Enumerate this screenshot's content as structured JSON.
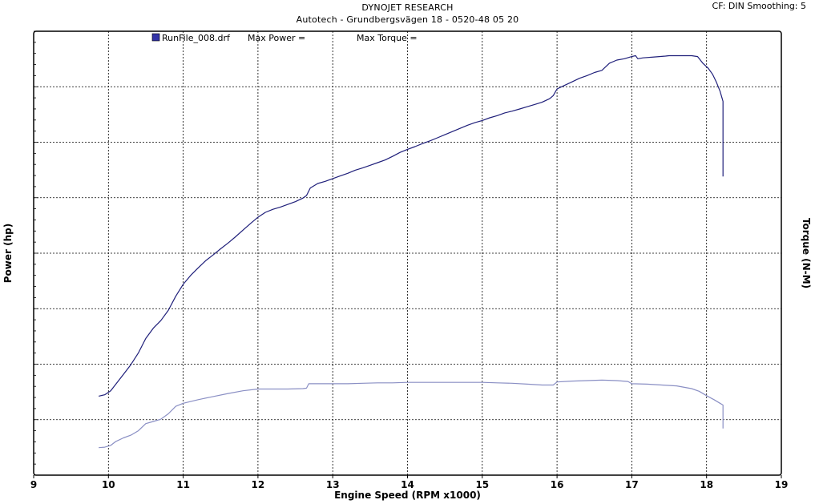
{
  "header": {
    "title": "DYNOJET RESEARCH",
    "subtitle": "Autotech - Grundbergsvägen 18 - 0520-48 05 20",
    "cf": "CF: DIN  Smoothing: 5"
  },
  "legend": {
    "run_label": "RunFile_008.drf",
    "max_power_label": "Max Power =",
    "max_torque_label": "Max Torque ="
  },
  "colors": {
    "power": "#1f1f7a",
    "torque": "#8a8fc4",
    "grid": "#000000",
    "legend_swatch": "#3434a8"
  },
  "chart_data": {
    "type": "line",
    "xlabel": "Engine Speed (RPM x1000)",
    "ylabel_left": "Power (hp)",
    "ylabel_right": "Torque (N-M)",
    "xlim": [
      9,
      19
    ],
    "x_ticks": [
      9,
      10,
      11,
      12,
      13,
      14,
      15,
      16,
      17,
      18,
      19
    ],
    "y_axis_scale": "relative (no numeric tick labels shown); 0 = plot bottom, 100 = plot top",
    "ylim": [
      0,
      100
    ],
    "grid": true,
    "series": [
      {
        "name": "Power",
        "points": [
          [
            9.87,
            17.8
          ],
          [
            9.95,
            18.1
          ],
          [
            10.03,
            19.0
          ],
          [
            10.1,
            20.5
          ],
          [
            10.2,
            22.7
          ],
          [
            10.3,
            24.9
          ],
          [
            10.4,
            27.5
          ],
          [
            10.5,
            30.8
          ],
          [
            10.6,
            33.1
          ],
          [
            10.7,
            34.8
          ],
          [
            10.8,
            37.1
          ],
          [
            10.9,
            40.3
          ],
          [
            11.0,
            43.0
          ],
          [
            11.1,
            45.0
          ],
          [
            11.2,
            46.7
          ],
          [
            11.3,
            48.3
          ],
          [
            11.4,
            49.6
          ],
          [
            11.5,
            51.0
          ],
          [
            11.6,
            52.3
          ],
          [
            11.7,
            53.7
          ],
          [
            11.8,
            55.2
          ],
          [
            11.9,
            56.7
          ],
          [
            12.0,
            58.1
          ],
          [
            12.1,
            59.2
          ],
          [
            12.2,
            59.9
          ],
          [
            12.3,
            60.4
          ],
          [
            12.4,
            61.0
          ],
          [
            12.5,
            61.6
          ],
          [
            12.6,
            62.4
          ],
          [
            12.65,
            63.0
          ],
          [
            12.7,
            64.7
          ],
          [
            12.8,
            65.7
          ],
          [
            12.9,
            66.2
          ],
          [
            13.0,
            66.8
          ],
          [
            13.1,
            67.4
          ],
          [
            13.2,
            68.0
          ],
          [
            13.3,
            68.7
          ],
          [
            13.4,
            69.2
          ],
          [
            13.5,
            69.8
          ],
          [
            13.6,
            70.4
          ],
          [
            13.7,
            71.0
          ],
          [
            13.8,
            71.8
          ],
          [
            13.9,
            72.7
          ],
          [
            14.0,
            73.4
          ],
          [
            14.1,
            74.0
          ],
          [
            14.2,
            74.7
          ],
          [
            14.3,
            75.3
          ],
          [
            14.4,
            76.0
          ],
          [
            14.5,
            76.7
          ],
          [
            14.6,
            77.4
          ],
          [
            14.7,
            78.1
          ],
          [
            14.8,
            78.8
          ],
          [
            14.9,
            79.4
          ],
          [
            15.0,
            79.9
          ],
          [
            15.1,
            80.5
          ],
          [
            15.2,
            81.0
          ],
          [
            15.3,
            81.6
          ],
          [
            15.4,
            82.0
          ],
          [
            15.5,
            82.5
          ],
          [
            15.6,
            83.0
          ],
          [
            15.7,
            83.5
          ],
          [
            15.8,
            84.0
          ],
          [
            15.9,
            84.8
          ],
          [
            15.95,
            85.5
          ],
          [
            16.0,
            87.0
          ],
          [
            16.1,
            87.8
          ],
          [
            16.2,
            88.6
          ],
          [
            16.3,
            89.4
          ],
          [
            16.4,
            90.0
          ],
          [
            16.5,
            90.7
          ],
          [
            16.6,
            91.2
          ],
          [
            16.7,
            92.8
          ],
          [
            16.8,
            93.5
          ],
          [
            16.9,
            93.8
          ],
          [
            17.0,
            94.3
          ],
          [
            17.05,
            94.5
          ],
          [
            17.08,
            93.8
          ],
          [
            17.15,
            94.0
          ],
          [
            17.3,
            94.2
          ],
          [
            17.45,
            94.4
          ],
          [
            17.5,
            94.5
          ],
          [
            17.6,
            94.5
          ],
          [
            17.7,
            94.5
          ],
          [
            17.8,
            94.5
          ],
          [
            17.88,
            94.3
          ],
          [
            17.95,
            92.8
          ],
          [
            18.02,
            91.7
          ],
          [
            18.08,
            90.3
          ],
          [
            18.13,
            88.6
          ],
          [
            18.18,
            86.5
          ],
          [
            18.22,
            84.2
          ],
          [
            18.22,
            67.3
          ]
        ]
      },
      {
        "name": "Torque",
        "points": [
          [
            9.87,
            6.2
          ],
          [
            9.95,
            6.3
          ],
          [
            10.03,
            6.7
          ],
          [
            10.1,
            7.6
          ],
          [
            10.2,
            8.4
          ],
          [
            10.3,
            9.0
          ],
          [
            10.4,
            10.0
          ],
          [
            10.5,
            11.6
          ],
          [
            10.6,
            12.1
          ],
          [
            10.7,
            12.6
          ],
          [
            10.8,
            13.8
          ],
          [
            10.9,
            15.5
          ],
          [
            11.0,
            16.2
          ],
          [
            11.2,
            17.0
          ],
          [
            11.4,
            17.7
          ],
          [
            11.6,
            18.4
          ],
          [
            11.8,
            19.0
          ],
          [
            12.0,
            19.4
          ],
          [
            12.2,
            19.4
          ],
          [
            12.4,
            19.4
          ],
          [
            12.6,
            19.5
          ],
          [
            12.65,
            19.6
          ],
          [
            12.68,
            20.6
          ],
          [
            12.8,
            20.6
          ],
          [
            13.0,
            20.6
          ],
          [
            13.2,
            20.6
          ],
          [
            13.4,
            20.7
          ],
          [
            13.6,
            20.8
          ],
          [
            13.8,
            20.8
          ],
          [
            14.0,
            20.9
          ],
          [
            14.2,
            20.9
          ],
          [
            14.4,
            20.9
          ],
          [
            14.6,
            20.9
          ],
          [
            14.8,
            20.9
          ],
          [
            15.0,
            20.9
          ],
          [
            15.2,
            20.8
          ],
          [
            15.4,
            20.7
          ],
          [
            15.6,
            20.5
          ],
          [
            15.8,
            20.3
          ],
          [
            15.95,
            20.3
          ],
          [
            16.0,
            21.0
          ],
          [
            16.2,
            21.2
          ],
          [
            16.4,
            21.3
          ],
          [
            16.6,
            21.4
          ],
          [
            16.8,
            21.3
          ],
          [
            16.95,
            21.1
          ],
          [
            17.0,
            20.6
          ],
          [
            17.2,
            20.5
          ],
          [
            17.4,
            20.3
          ],
          [
            17.6,
            20.1
          ],
          [
            17.8,
            19.5
          ],
          [
            17.9,
            18.9
          ],
          [
            18.0,
            17.9
          ],
          [
            18.1,
            17.0
          ],
          [
            18.18,
            16.2
          ],
          [
            18.22,
            15.8
          ],
          [
            18.22,
            10.5
          ]
        ]
      }
    ]
  }
}
